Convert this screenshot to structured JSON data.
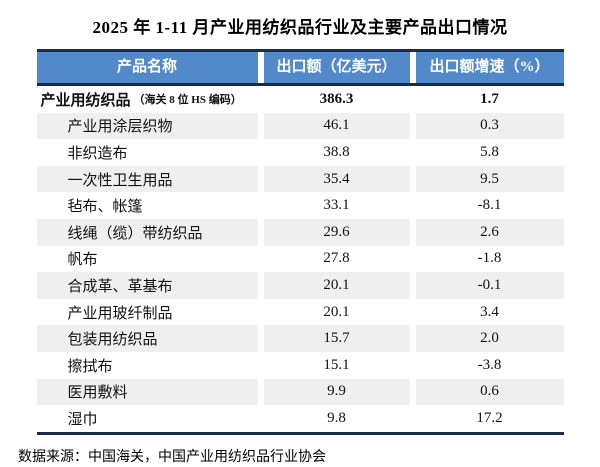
{
  "title": "2025 年 1-11 月产业用纺织品行业及主要产品出口情况",
  "footer": "数据来源：中国海关，中国产业用纺织品行业协会",
  "colors": {
    "header_bg": "#5289cb",
    "header_text": "#ffffff",
    "border_dark": "#1c2b4a",
    "stripe_bg": "#efefef",
    "page_bg": "#ffffff"
  },
  "chart_data": {
    "type": "table",
    "title": "2025 年 1-11 月产业用纺织品行业及主要产品出口情况",
    "columns": [
      "产品名称",
      "出口额（亿美元）",
      "出口额增速（%）"
    ],
    "rows": [
      {
        "name": "产业用纺织品",
        "note": "（海关 8 位 HS 编码）",
        "value": "386.3",
        "growth": "1.7",
        "bold": true,
        "indent": false
      },
      {
        "name": "产业用涂层织物",
        "note": "",
        "value": "46.1",
        "growth": "0.3",
        "bold": false,
        "indent": true
      },
      {
        "name": "非织造布",
        "note": "",
        "value": "38.8",
        "growth": "5.8",
        "bold": false,
        "indent": true
      },
      {
        "name": "一次性卫生用品",
        "note": "",
        "value": "35.4",
        "growth": "9.5",
        "bold": false,
        "indent": true
      },
      {
        "name": "毡布、帐篷",
        "note": "",
        "value": "33.1",
        "growth": "-8.1",
        "bold": false,
        "indent": true
      },
      {
        "name": "线绳（缆）带纺织品",
        "note": "",
        "value": "29.6",
        "growth": "2.6",
        "bold": false,
        "indent": true
      },
      {
        "name": "帆布",
        "note": "",
        "value": "27.8",
        "growth": "-1.8",
        "bold": false,
        "indent": true
      },
      {
        "name": "合成革、革基布",
        "note": "",
        "value": "20.1",
        "growth": "-0.1",
        "bold": false,
        "indent": true
      },
      {
        "name": "产业用玻纤制品",
        "note": "",
        "value": "20.1",
        "growth": "3.4",
        "bold": false,
        "indent": true
      },
      {
        "name": "包装用纺织品",
        "note": "",
        "value": "15.7",
        "growth": "2.0",
        "bold": false,
        "indent": true
      },
      {
        "name": "擦拭布",
        "note": "",
        "value": "15.1",
        "growth": "-3.8",
        "bold": false,
        "indent": true
      },
      {
        "name": "医用敷料",
        "note": "",
        "value": "9.9",
        "growth": "0.6",
        "bold": false,
        "indent": true
      },
      {
        "name": "湿巾",
        "note": "",
        "value": "9.8",
        "growth": "17.2",
        "bold": false,
        "indent": true
      }
    ],
    "source": "数据来源：中国海关，中国产业用纺织品行业协会",
    "layout": {
      "stripe_alternating": true,
      "first_row_bold": true,
      "value_columns_centered": true
    }
  }
}
